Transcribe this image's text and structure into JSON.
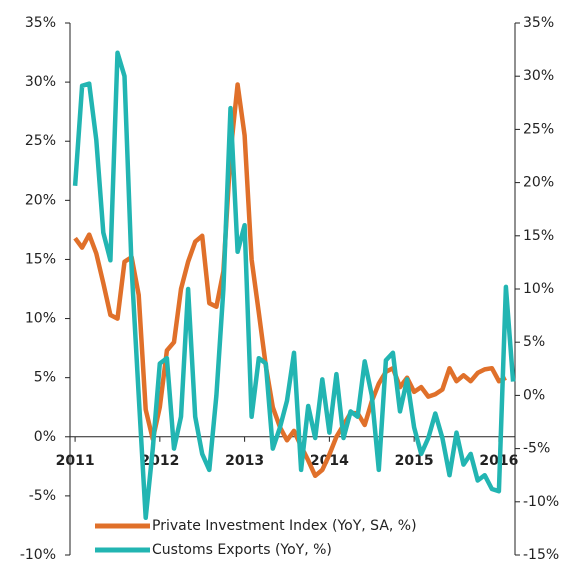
{
  "chart_data": {
    "type": "line",
    "x": [
      2011,
      2011.083,
      2011.167,
      2011.25,
      2011.333,
      2011.417,
      2011.5,
      2011.583,
      2011.667,
      2011.75,
      2011.833,
      2011.917,
      2012,
      2012.083,
      2012.167,
      2012.25,
      2012.333,
      2012.417,
      2012.5,
      2012.583,
      2012.667,
      2012.75,
      2012.833,
      2012.917,
      2013,
      2013.083,
      2013.167,
      2013.25,
      2013.333,
      2013.417,
      2013.5,
      2013.583,
      2013.667,
      2013.75,
      2013.833,
      2013.917,
      2014,
      2014.083,
      2014.167,
      2014.25,
      2014.333,
      2014.417,
      2014.5,
      2014.583,
      2014.667,
      2014.75,
      2014.833,
      2014.917,
      2015,
      2015.083,
      2015.167,
      2015.25,
      2015.333,
      2015.417,
      2015.5,
      2015.583,
      2015.667,
      2015.75,
      2015.833,
      2015.917,
      2016,
      2016.083,
      2016.167
    ],
    "series": [
      {
        "name": "Private Investment Index (YoY, SA, %)",
        "color": "#e0702a",
        "values": [
          16.8,
          16,
          17.1,
          15.5,
          13,
          10.3,
          10,
          14.8,
          15.2,
          12,
          2.3,
          -0.2,
          2.5,
          7.3,
          8,
          12.5,
          14.8,
          16.5,
          17,
          11.3,
          11,
          14,
          24,
          29.8,
          25.5,
          15,
          10.5,
          6,
          2.5,
          0.8,
          -0.3,
          0.5,
          -0.8,
          -2,
          -3.3,
          -2.8,
          -1.5,
          0,
          1,
          2,
          2,
          1,
          3,
          4.5,
          5.5,
          5.8,
          4.2,
          5,
          3.8,
          4.2,
          3.4,
          3.6,
          4,
          5.8,
          4.7,
          5.2,
          4.7,
          5.4,
          5.7,
          5.8,
          4.7,
          5,
          null
        ]
      },
      {
        "name": "Customs Exports (YoY, %)",
        "color": "#22b5b2",
        "axis": "y2",
        "values": [
          19.7,
          29.1,
          29.3,
          24,
          15.3,
          12.7,
          32.2,
          30,
          12,
          0,
          -11.5,
          -5,
          3,
          3.5,
          -5,
          -2,
          10,
          -2,
          -5.5,
          -7,
          0,
          10,
          27,
          13.5,
          16,
          -2,
          3.5,
          3,
          -5,
          -3,
          -0.5,
          4,
          -7,
          -1,
          -4,
          1.5,
          -3.5,
          2,
          -4,
          -1.5,
          -2,
          3.2,
          0,
          -7,
          3.3,
          4,
          -1.5,
          1.5,
          -3,
          -5.5,
          -4,
          -1.7,
          -4,
          -7.5,
          -3.5,
          -6.5,
          -5.5,
          -8,
          -7.5,
          -8.8,
          -9,
          10.2,
          1.3
        ]
      }
    ],
    "xlim": [
      2010.94,
      2016.19
    ],
    "xticks": [
      2011,
      2012,
      2013,
      2014,
      2015,
      2016
    ],
    "ylim": [
      -10,
      35
    ],
    "yticks": [
      {
        "value": -10,
        "label": "-10%"
      },
      {
        "value": -5,
        "label": "-5%"
      },
      {
        "value": 0,
        "label": "0%"
      },
      {
        "value": 5,
        "label": "5%"
      },
      {
        "value": 10,
        "label": "10%"
      },
      {
        "value": 15,
        "label": "15%"
      },
      {
        "value": 20,
        "label": "20%"
      },
      {
        "value": 25,
        "label": "25%"
      },
      {
        "value": 30,
        "label": "30%"
      },
      {
        "value": 35,
        "label": "35%"
      }
    ],
    "y2lim": [
      -15,
      35
    ],
    "y2ticks": [
      {
        "value": -15,
        "label": "-15%"
      },
      {
        "value": -10,
        "label": "-10%"
      },
      {
        "value": -5,
        "label": "-5%"
      },
      {
        "value": 0,
        "label": "0%"
      },
      {
        "value": 5,
        "label": "5%"
      },
      {
        "value": 10,
        "label": "10%"
      },
      {
        "value": 15,
        "label": "15%"
      },
      {
        "value": 20,
        "label": "20%"
      },
      {
        "value": 25,
        "label": "25%"
      },
      {
        "value": 30,
        "label": "30%"
      },
      {
        "value": 35,
        "label": "35%"
      }
    ],
    "legend": "lower-left"
  }
}
